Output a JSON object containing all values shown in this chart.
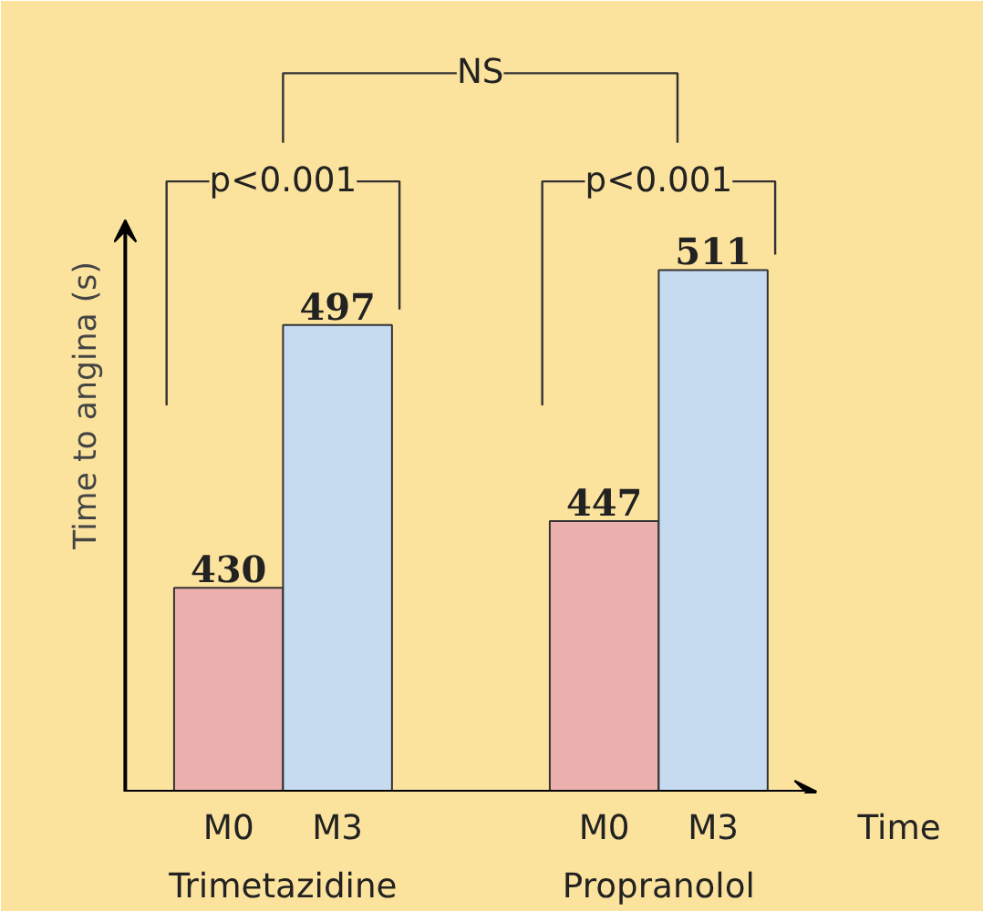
{
  "chart_data": {
    "type": "bar",
    "ylabel": "Time to angina (s)",
    "xlabel": "Time",
    "categories": [
      "Trimetazidine",
      "Propranolol"
    ],
    "series": [
      {
        "name": "M0",
        "color": "#ebb0ad",
        "values": [
          430,
          447
        ]
      },
      {
        "name": "M3",
        "color": "#c6dbf0",
        "values": [
          497,
          511
        ]
      }
    ],
    "ylim": [
      378,
      575
    ],
    "data_labels": true,
    "annotations": [
      "p<0.001",
      "p<0.001",
      "NS"
    ]
  }
}
